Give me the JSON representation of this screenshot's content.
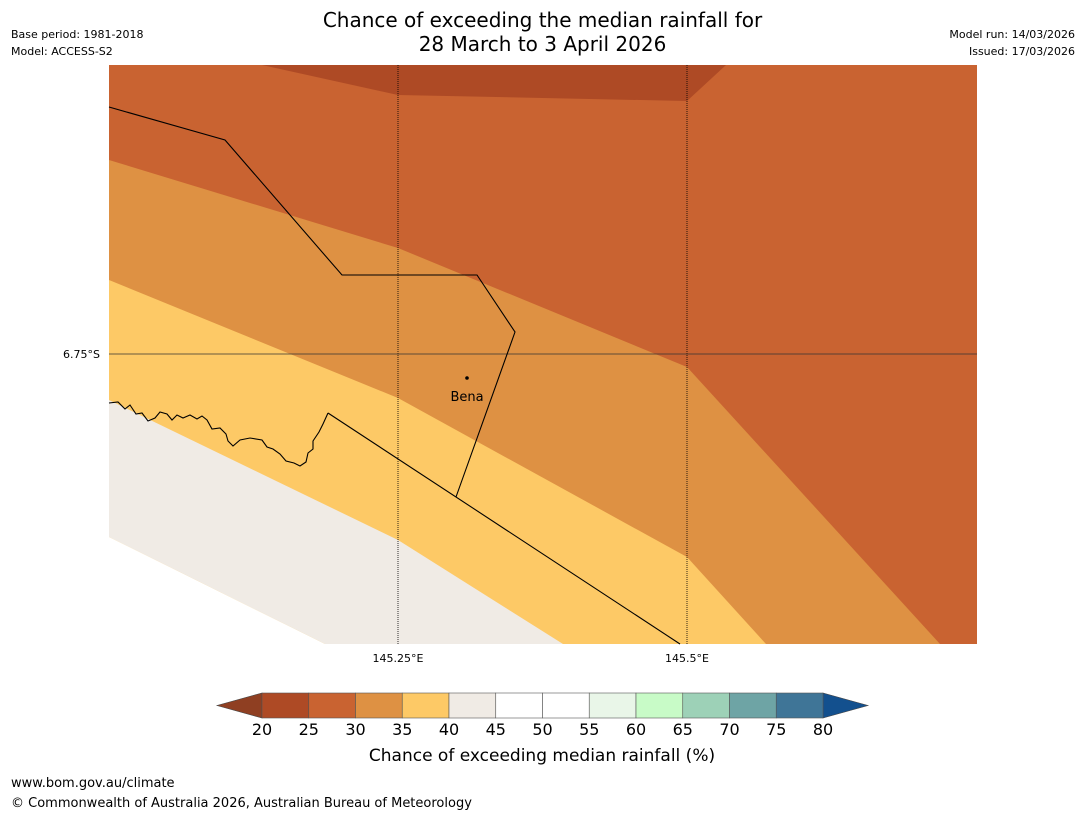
{
  "title": {
    "line1": "Chance of exceeding the median rainfall for",
    "line2": "28 March to 3 April 2026"
  },
  "meta_left": {
    "base_period": "Base period: 1981-2018",
    "model": "Model: ACCESS-S2"
  },
  "meta_right": {
    "model_run": "Model run: 14/03/2026",
    "issued": "Issued: 17/03/2026"
  },
  "map": {
    "lat_label": "6.75°S",
    "lon_labels": [
      "145.25°E",
      "145.5°E"
    ],
    "place": {
      "name": "Bena"
    }
  },
  "colorbar": {
    "label": "Chance of exceeding median rainfall (%)",
    "ticks": [
      "20",
      "25",
      "30",
      "35",
      "40",
      "45",
      "50",
      "55",
      "60",
      "65",
      "70",
      "75",
      "80"
    ],
    "under_color": "#8f3f22",
    "over_color": "#13508e",
    "bin_colors": [
      "#ae4a25",
      "#c96331",
      "#de9143",
      "#fdc966",
      "#f0ebe5",
      "#ffffff",
      "#ffffff",
      "#e9f6e8",
      "#c8fbc7",
      "#9dd1b7",
      "#6ea4a5",
      "#3f7597"
    ]
  },
  "footer": {
    "url": "www.bom.gov.au/climate",
    "copyright": "© Commonwealth of Australia 2026, Australian Bureau of Meteorology"
  }
}
